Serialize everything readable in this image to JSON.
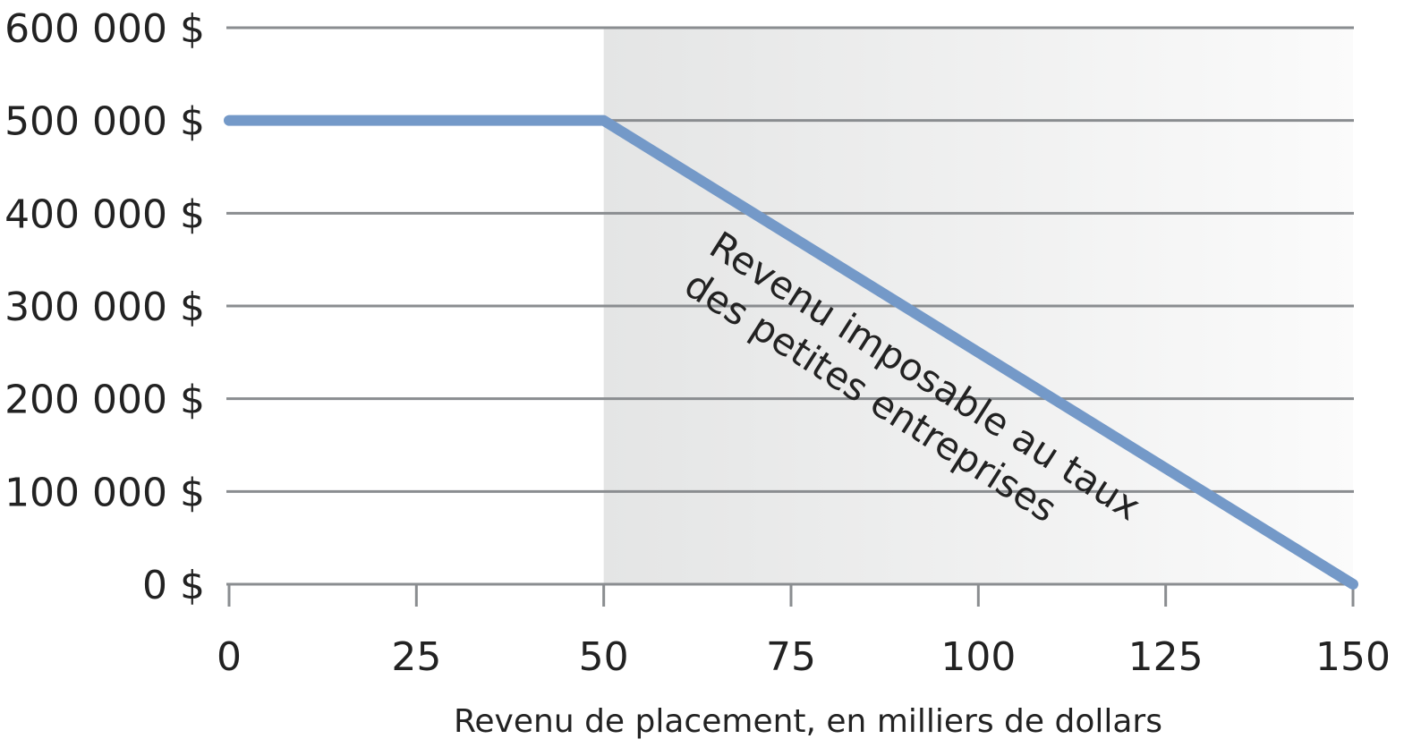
{
  "chart_data": {
    "type": "line",
    "title": "",
    "xlabel": "Revenu de placement, en milliers de dollars",
    "ylabel": "",
    "xlim": [
      0,
      150
    ],
    "ylim": [
      0,
      600000
    ],
    "x_ticks": [
      0,
      25,
      50,
      75,
      100,
      125,
      150
    ],
    "x_tick_labels": [
      "0",
      "25",
      "50",
      "75",
      "100",
      "125",
      "150"
    ],
    "y_ticks": [
      0,
      100000,
      200000,
      300000,
      400000,
      500000,
      600000
    ],
    "y_tick_labels": [
      "0 $",
      "100 000 $",
      "200 000 $",
      "300 000 $",
      "400 000 $",
      "500 000 $",
      "600 000 $"
    ],
    "grid": true,
    "shaded_region": {
      "x_start": 50,
      "x_end": 150
    },
    "series": [
      {
        "x": [
          0,
          50,
          150
        ],
        "y": [
          500000,
          500000,
          0
        ],
        "color": "#7499c8"
      }
    ],
    "annotation": {
      "lines": [
        "Revenu imposable au taux",
        "des petites entreprises"
      ]
    },
    "colors": {
      "line": "#7499c8",
      "grid": "#8a8d90",
      "shade": "#e4e5e5"
    }
  }
}
